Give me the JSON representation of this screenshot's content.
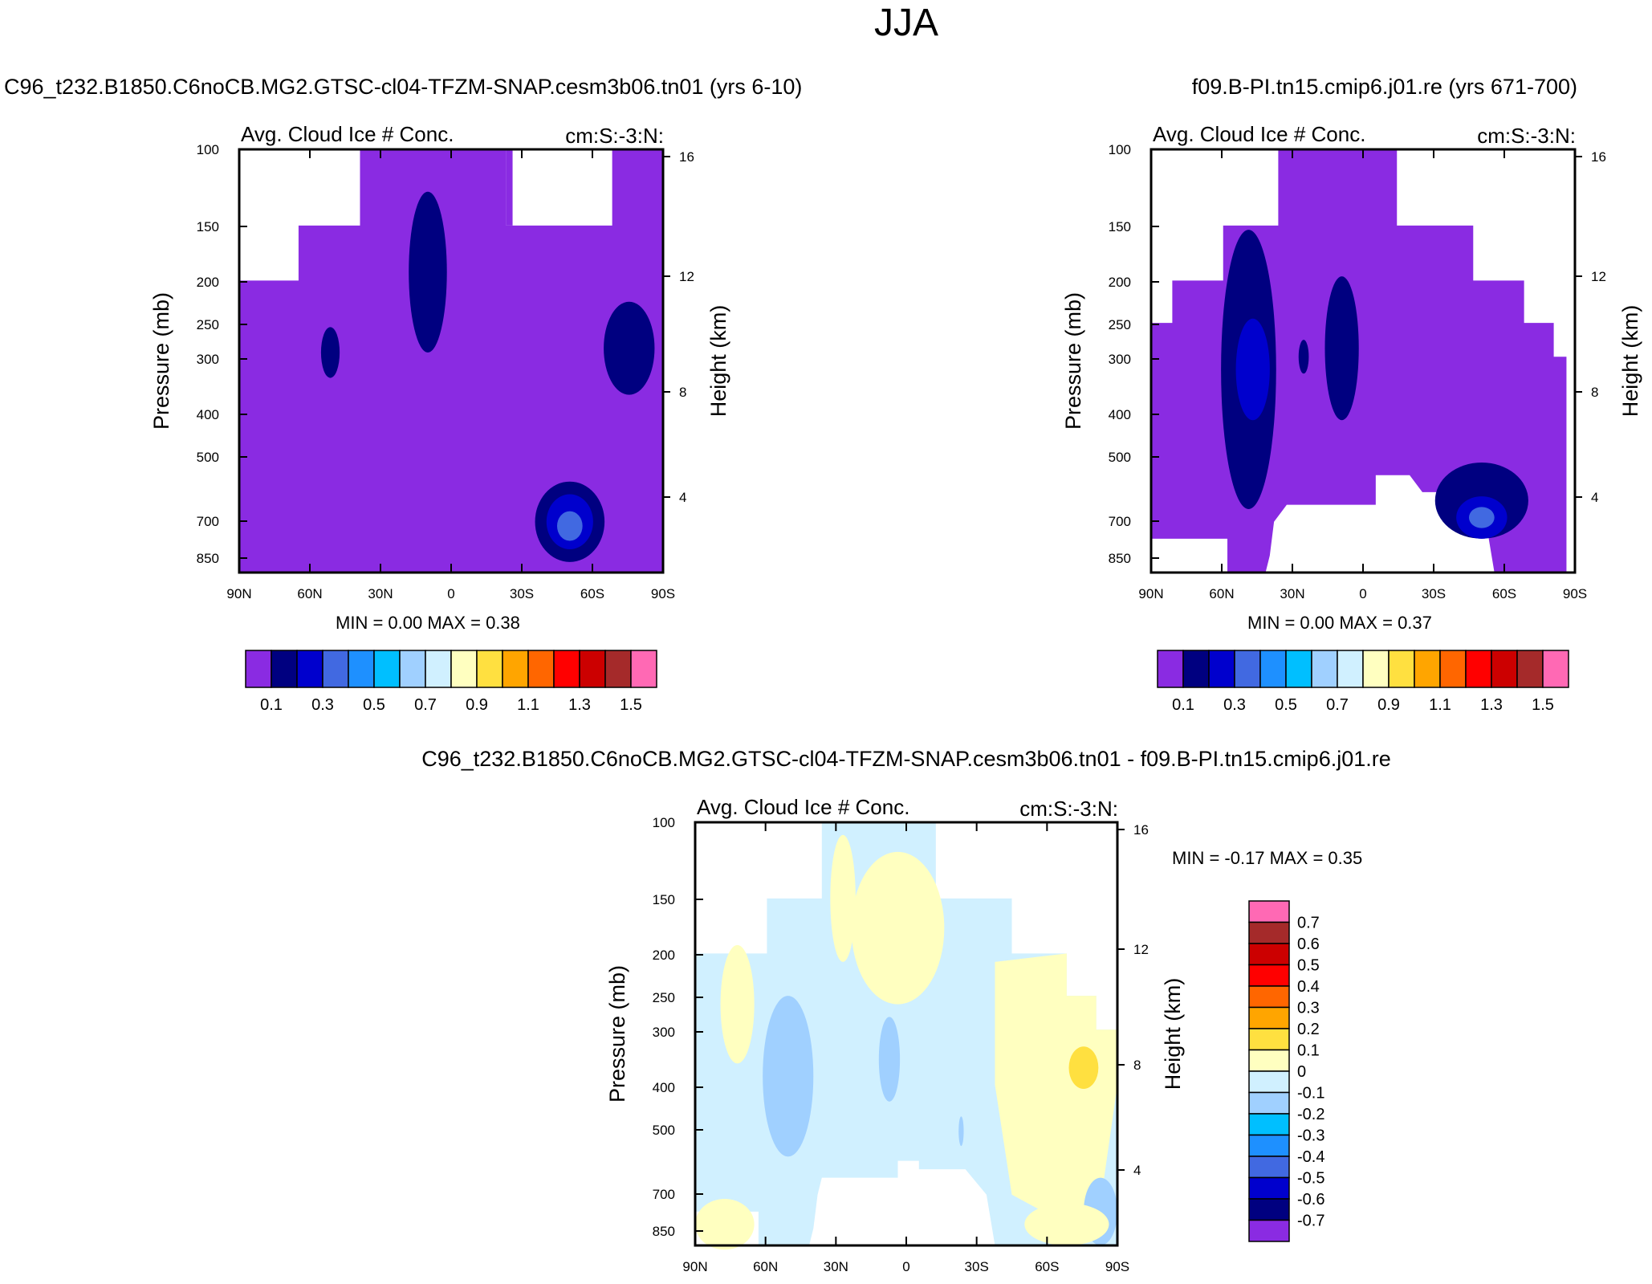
{
  "figure": {
    "title": "JJA"
  },
  "panels": [
    {
      "title": "C96_t232.B1850.C6noCB.MG2.GTSC-cl04-TFZM-SNAP.cesm3b06.tn01 (yrs 6-10)",
      "left_label": "Avg. Cloud Ice # Conc.",
      "right_label": "cm:S:-3:N:",
      "min_max": "MIN =   0.00  MAX =   0.38"
    },
    {
      "title": "f09.B-PI.tn15.cmip6.j01.re (yrs 671-700)",
      "left_label": "Avg. Cloud Ice # Conc.",
      "right_label": "cm:S:-3:N:",
      "min_max": "MIN =   0.00  MAX =   0.37"
    },
    {
      "title": "C96_t232.B1850.C6noCB.MG2.GTSC-cl04-TFZM-SNAP.cesm3b06.tn01 - f09.B-PI.tn15.cmip6.j01.re",
      "left_label": "Avg. Cloud Ice # Conc.",
      "right_label": "cm:S:-3:N:",
      "min_max": "MIN =  -0.17  MAX =   0.35"
    }
  ],
  "colorbars": {
    "absolute": {
      "colors": [
        "#8a2be2",
        "#000080",
        "#0000cd",
        "#4169e1",
        "#1e90ff",
        "#00bfff",
        "#a0d0ff",
        "#d0f0ff",
        "#ffffc0",
        "#ffe040",
        "#ffa500",
        "#ff6600",
        "#ff0000",
        "#cc0000",
        "#a52a2a",
        "#ff69b4"
      ],
      "labels": [
        "0.1",
        "0.3",
        "0.5",
        "0.7",
        "0.9",
        "1.1",
        "1.3",
        "1.5"
      ]
    },
    "difference": {
      "colors": [
        "#ff69b4",
        "#a52a2a",
        "#cc0000",
        "#ff0000",
        "#ff6600",
        "#ffa500",
        "#ffe040",
        "#ffffc0",
        "#d0f0ff",
        "#a0d0ff",
        "#00bfff",
        "#1e90ff",
        "#4169e1",
        "#0000cd",
        "#000080",
        "#8a2be2"
      ],
      "labels": [
        "0.7",
        "0.6",
        "0.5",
        "0.4",
        "0.3",
        "0.2",
        "0.1",
        "0",
        "-0.1",
        "-0.2",
        "-0.3",
        "-0.4",
        "-0.5",
        "-0.6",
        "-0.7"
      ]
    }
  },
  "chart_data": [
    {
      "type": "heatmap",
      "title": "C96_t232.B1850.C6noCB.MG2.GTSC-cl04-TFZM-SNAP.cesm3b06.tn01 (yrs 6-10)",
      "variable": "Avg. Cloud Ice # Conc.",
      "units": "cm:S:-3:N:",
      "xlabel": "",
      "ylabel": "Pressure (mb)",
      "y2label": "Height (km)",
      "x_ticks": [
        "90N",
        "60N",
        "30N",
        "0",
        "30S",
        "60S",
        "90S"
      ],
      "y_ticks": [
        "100",
        "150",
        "200",
        "250",
        "300",
        "400",
        "500",
        "700",
        "850"
      ],
      "y2_ticks": [
        "16",
        "12",
        "8",
        "4"
      ],
      "min": 0.0,
      "max": 0.38
    },
    {
      "type": "heatmap",
      "title": "f09.B-PI.tn15.cmip6.j01.re (yrs 671-700)",
      "variable": "Avg. Cloud Ice # Conc.",
      "units": "cm:S:-3:N:",
      "xlabel": "",
      "ylabel": "Pressure (mb)",
      "y2label": "Height (km)",
      "x_ticks": [
        "90N",
        "60N",
        "30N",
        "0",
        "30S",
        "60S",
        "90S"
      ],
      "y_ticks": [
        "100",
        "150",
        "200",
        "250",
        "300",
        "400",
        "500",
        "700",
        "850"
      ],
      "y2_ticks": [
        "16",
        "12",
        "8",
        "4"
      ],
      "min": 0.0,
      "max": 0.37
    },
    {
      "type": "heatmap",
      "title": "C96_t232.B1850.C6noCB.MG2.GTSC-cl04-TFZM-SNAP.cesm3b06.tn01 - f09.B-PI.tn15.cmip6.j01.re",
      "variable": "Avg. Cloud Ice # Conc.",
      "units": "cm:S:-3:N:",
      "xlabel": "",
      "ylabel": "Pressure (mb)",
      "y2label": "Height (km)",
      "x_ticks": [
        "90N",
        "60N",
        "30N",
        "0",
        "30S",
        "60S",
        "90S"
      ],
      "y_ticks": [
        "100",
        "150",
        "200",
        "250",
        "300",
        "400",
        "500",
        "700",
        "850"
      ],
      "y2_ticks": [
        "16",
        "12",
        "8",
        "4"
      ],
      "min": -0.17,
      "max": 0.35
    }
  ]
}
